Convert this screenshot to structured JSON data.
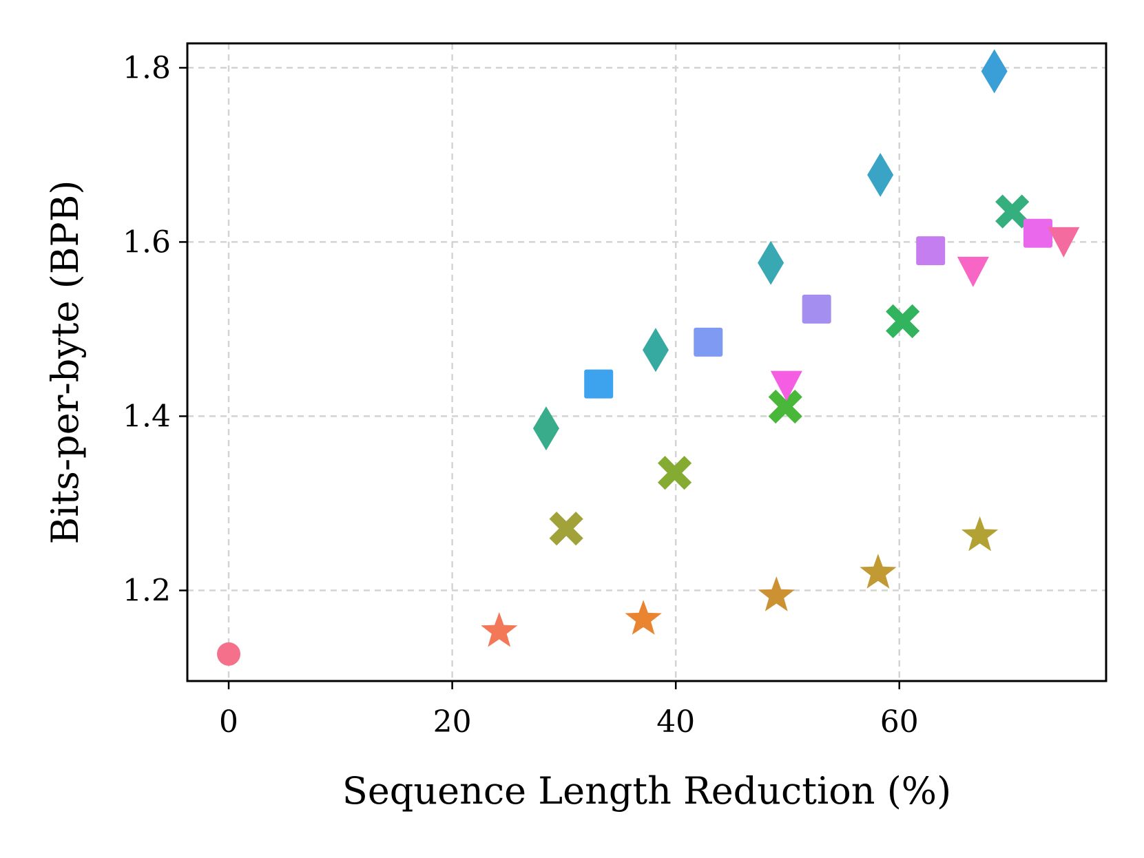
{
  "chart_data": {
    "type": "scatter",
    "title": "",
    "xlabel": "Sequence Length Reduction (%)",
    "ylabel": "Bits-per-byte (BPB)",
    "xlim": [
      -3.7,
      78.5
    ],
    "ylim": [
      1.096,
      1.828
    ],
    "xticks": [
      0,
      20,
      40,
      60
    ],
    "xtick_labels": [
      "0",
      "20",
      "40",
      "60"
    ],
    "yticks": [
      1.2,
      1.4,
      1.6,
      1.8
    ],
    "ytick_labels": [
      "1.2",
      "1.4",
      "1.6",
      "1.8"
    ],
    "grid": true,
    "points": [
      {
        "x": 0.0,
        "y": 1.127,
        "marker": "circle",
        "color": "#f5708a"
      },
      {
        "x": 24.2,
        "y": 1.153,
        "marker": "star",
        "color": "#f27858"
      },
      {
        "x": 37.1,
        "y": 1.167,
        "marker": "star",
        "color": "#e98430"
      },
      {
        "x": 49.0,
        "y": 1.194,
        "marker": "star",
        "color": "#cc9133"
      },
      {
        "x": 58.1,
        "y": 1.22,
        "marker": "star",
        "color": "#c29a34"
      },
      {
        "x": 67.2,
        "y": 1.263,
        "marker": "star",
        "color": "#b2a234"
      },
      {
        "x": 30.2,
        "y": 1.271,
        "marker": "x",
        "color": "#a1a23a"
      },
      {
        "x": 39.9,
        "y": 1.335,
        "marker": "x",
        "color": "#85ab32"
      },
      {
        "x": 49.8,
        "y": 1.411,
        "marker": "x",
        "color": "#48b73a"
      },
      {
        "x": 60.3,
        "y": 1.509,
        "marker": "x",
        "color": "#32b35e"
      },
      {
        "x": 70.1,
        "y": 1.635,
        "marker": "x",
        "color": "#36af7e"
      },
      {
        "x": 28.4,
        "y": 1.386,
        "marker": "diamond",
        "color": "#38ac8b"
      },
      {
        "x": 38.2,
        "y": 1.476,
        "marker": "diamond",
        "color": "#36aaa1"
      },
      {
        "x": 48.5,
        "y": 1.576,
        "marker": "diamond",
        "color": "#38a8b2"
      },
      {
        "x": 58.3,
        "y": 1.677,
        "marker": "diamond",
        "color": "#39a4c6"
      },
      {
        "x": 68.5,
        "y": 1.796,
        "marker": "diamond",
        "color": "#3a9fd6"
      },
      {
        "x": 33.1,
        "y": 1.437,
        "marker": "square",
        "color": "#3ea3ee"
      },
      {
        "x": 42.9,
        "y": 1.485,
        "marker": "square",
        "color": "#7f9af3"
      },
      {
        "x": 52.6,
        "y": 1.523,
        "marker": "square",
        "color": "#a48ff0"
      },
      {
        "x": 62.8,
        "y": 1.59,
        "marker": "square",
        "color": "#c57ef0"
      },
      {
        "x": 72.4,
        "y": 1.61,
        "marker": "square",
        "color": "#e968ec"
      },
      {
        "x": 49.9,
        "y": 1.437,
        "marker": "triangle",
        "color": "#f55ee2"
      },
      {
        "x": 66.6,
        "y": 1.568,
        "marker": "triangle",
        "color": "#f766c4"
      },
      {
        "x": 74.7,
        "y": 1.602,
        "marker": "triangle",
        "color": "#f46c9f"
      }
    ]
  }
}
